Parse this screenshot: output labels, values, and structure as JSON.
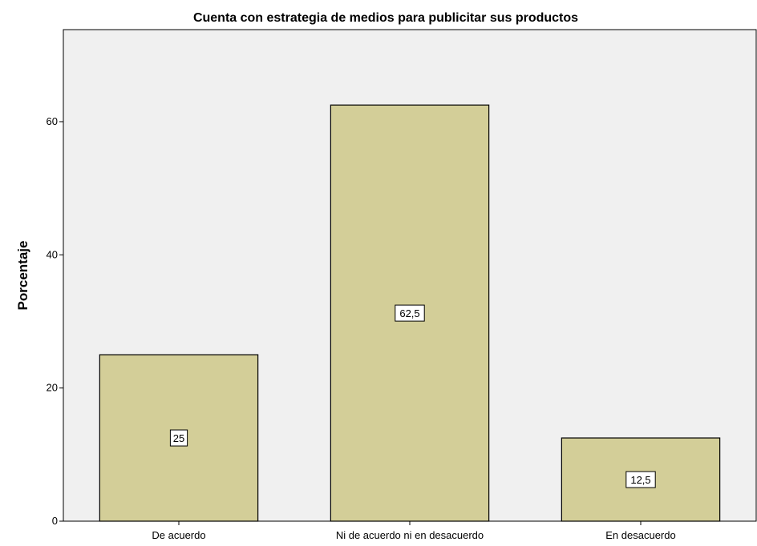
{
  "chart_data": {
    "type": "bar",
    "title": "Cuenta con estrategia de medios para publicitar sus productos",
    "xlabel": "",
    "ylabel": "Porcentaje",
    "categories": [
      "De acuerdo",
      "Ni de acuerdo ni en desacuerdo",
      "En desacuerdo"
    ],
    "values": [
      25,
      62.5,
      12.5
    ],
    "data_labels": [
      "25",
      "62,5",
      "12,5"
    ],
    "yticks": [
      0,
      20,
      40,
      60
    ],
    "ylim": [
      0,
      74
    ],
    "grid": false,
    "colors": {
      "bar_fill": "#d3ce98",
      "bar_stroke": "#000000",
      "plot_background": "#f0f0f0",
      "label_box": "#ffffff"
    }
  }
}
